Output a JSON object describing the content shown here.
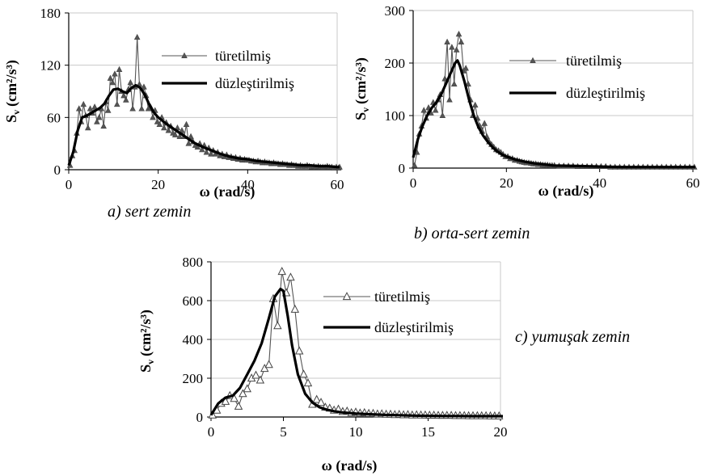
{
  "chart_data": [
    {
      "type": "line",
      "caption": "a) sert zemin",
      "xlabel": "ω (rad/s)",
      "ylabel_main": "S",
      "ylabel_sub": "v",
      "ylabel_unit": "(cm²/s³)",
      "xlim": [
        0,
        60
      ],
      "ylim": [
        0,
        180
      ],
      "xticks": [
        "0",
        "20",
        "40",
        "60"
      ],
      "xtick_values": [
        0,
        20,
        40,
        60
      ],
      "yticks": [
        "0",
        "60",
        "120",
        "180"
      ],
      "ytick_values": [
        0,
        60,
        120,
        180
      ],
      "legend_position": "top-right",
      "series": [
        {
          "name": "türetilmiş",
          "marker": "filled-triangle",
          "x": [
            0.3,
            0.8,
            1.3,
            1.8,
            2.3,
            2.8,
            3.3,
            3.8,
            4.3,
            4.8,
            5.3,
            5.8,
            6.3,
            6.8,
            7.3,
            7.8,
            8.3,
            8.8,
            9.3,
            9.8,
            10.3,
            10.8,
            11.3,
            11.8,
            12.3,
            12.8,
            13.3,
            13.8,
            14.3,
            14.8,
            15.3,
            15.8,
            16.3,
            16.8,
            17.3,
            17.8,
            18.3,
            18.8,
            19.3,
            19.8,
            20.3,
            20.8,
            21.3,
            21.8,
            22.3,
            22.8,
            23.3,
            23.8,
            24.3,
            24.8,
            25.3,
            25.8,
            26.3,
            26.8,
            27.3,
            27.8,
            28.3,
            28.8,
            29.3,
            29.8,
            30.3,
            30.8,
            31.3,
            31.8,
            32.3,
            32.8,
            33.3,
            33.8,
            34.3,
            34.8,
            35.3,
            35.8,
            36.3,
            36.8,
            37.3,
            37.8,
            38.3,
            38.8,
            39.3,
            39.8,
            40.3,
            40.8,
            41.3,
            41.8,
            42.3,
            42.8,
            43.3,
            43.8,
            44.3,
            44.8,
            45.3,
            45.8,
            46.3,
            46.8,
            47.3,
            47.8,
            48.3,
            48.8,
            49.3,
            49.8,
            50.3,
            50.8,
            51.3,
            51.8,
            52.3,
            52.8,
            53.3,
            53.8,
            54.3,
            54.8,
            55.3,
            55.8,
            56.3,
            56.8,
            57.3,
            57.8,
            58.3,
            58.8,
            59.3,
            59.8,
            60.3,
            60.8
          ],
          "y": [
            5,
            16,
            22,
            42,
            70,
            55,
            75,
            62,
            48,
            70,
            65,
            72,
            55,
            60,
            70,
            50,
            78,
            68,
            105,
            100,
            110,
            75,
            115,
            90,
            85,
            80,
            92,
            100,
            70,
            95,
            152,
            98,
            70,
            95,
            85,
            70,
            72,
            60,
            68,
            55,
            52,
            60,
            48,
            54,
            45,
            50,
            42,
            40,
            48,
            38,
            45,
            38,
            52,
            30,
            38,
            32,
            28,
            26,
            30,
            23,
            28,
            20,
            25,
            18,
            22,
            18,
            20,
            16,
            18,
            15,
            17,
            14,
            15,
            13,
            14,
            12,
            13,
            11,
            12,
            11,
            11,
            10,
            10,
            9,
            10,
            9,
            8,
            9,
            8,
            8,
            7,
            8,
            7,
            7,
            6,
            7,
            6,
            6,
            5,
            6,
            5,
            5,
            4,
            5,
            4,
            4,
            5,
            4,
            3,
            4,
            3,
            4,
            3,
            3,
            3,
            4,
            3,
            3,
            2,
            3,
            2,
            3
          ]
        },
        {
          "name": "düzleştirilmiş",
          "marker": "none",
          "x": [
            0,
            1,
            2,
            3,
            4,
            5,
            6,
            7,
            8,
            9,
            10,
            11,
            12,
            13,
            14,
            15,
            16,
            17,
            18,
            19,
            20,
            22,
            24,
            26,
            28,
            30,
            32,
            34,
            36,
            38,
            40,
            42,
            44,
            46,
            48,
            50,
            52,
            54,
            56,
            58,
            60,
            61
          ],
          "y": [
            5,
            20,
            45,
            60,
            62,
            65,
            68,
            71,
            76,
            85,
            92,
            93,
            90,
            88,
            94,
            97,
            94,
            86,
            75,
            66,
            60,
            52,
            45,
            38,
            31,
            26,
            22,
            18,
            15,
            13,
            12,
            10,
            9,
            8,
            7,
            6,
            5,
            5,
            4,
            4,
            3,
            3
          ]
        }
      ]
    },
    {
      "type": "line",
      "caption": "b) orta-sert zemin",
      "xlabel": "ω (rad/s)",
      "ylabel_main": "S",
      "ylabel_sub": "v",
      "ylabel_unit": "(cm²/s³)",
      "xlim": [
        0,
        60
      ],
      "ylim": [
        0,
        300
      ],
      "xticks": [
        "0",
        "20",
        "40",
        "60"
      ],
      "xtick_values": [
        0,
        20,
        40,
        60
      ],
      "yticks": [
        "0",
        "100",
        "200",
        "300"
      ],
      "ytick_values": [
        0,
        100,
        200,
        300
      ],
      "legend_position": "top-right",
      "series": [
        {
          "name": "türetilmiş",
          "marker": "filled-triangle",
          "x": [
            0.3,
            0.8,
            1.3,
            1.8,
            2.3,
            2.8,
            3.3,
            3.8,
            4.3,
            4.8,
            5.3,
            5.8,
            6.3,
            6.8,
            7.3,
            7.8,
            8.3,
            8.8,
            9.3,
            9.8,
            10.3,
            10.8,
            11.3,
            11.8,
            12.3,
            12.8,
            13.3,
            13.8,
            14.3,
            14.8,
            15.3,
            15.8,
            16.3,
            16.8,
            17.3,
            17.8,
            18.3,
            18.8,
            19.3,
            19.8,
            20.3,
            20.8,
            21.3,
            21.8,
            22.3,
            22.8,
            23.3,
            23.8,
            24.3,
            24.8,
            25.3,
            25.8,
            26.3,
            26.8,
            27.3,
            27.8,
            28.3,
            28.8,
            29.3,
            29.8,
            30.3,
            31.3,
            32.3,
            33.3,
            34.3,
            35.3,
            36.3,
            37.3,
            38.3,
            39.3,
            40.3,
            41.3,
            42.3,
            43.3,
            44.3,
            45.3,
            46.3,
            47.3,
            48.3,
            49.3,
            50.3,
            51.3,
            52.3,
            53.3,
            54.3,
            55.3,
            56.3,
            57.3,
            58.3,
            59.3,
            60.3
          ],
          "y": [
            5,
            30,
            65,
            80,
            110,
            95,
            115,
            105,
            125,
            110,
            130,
            140,
            100,
            170,
            240,
            130,
            230,
            160,
            225,
            255,
            240,
            185,
            190,
            160,
            130,
            100,
            120,
            95,
            80,
            70,
            85,
            60,
            50,
            45,
            40,
            35,
            33,
            30,
            26,
            22,
            22,
            18,
            18,
            15,
            15,
            13,
            12,
            11,
            10,
            10,
            9,
            8,
            8,
            7,
            7,
            6,
            6,
            6,
            5,
            5,
            5,
            4,
            4,
            4,
            4,
            3,
            3,
            3,
            3,
            3,
            3,
            3,
            2,
            2,
            2,
            2,
            2,
            2,
            2,
            2,
            2,
            2,
            2,
            2,
            2,
            2,
            2,
            2,
            2,
            2,
            2
          ]
        },
        {
          "name": "düzleştirilmiş",
          "marker": "none",
          "x": [
            0,
            1,
            2,
            3,
            4,
            5,
            6,
            7,
            8,
            9,
            9.5,
            10,
            11,
            12,
            13,
            14,
            15,
            16,
            17,
            18,
            19,
            20,
            22,
            24,
            26,
            28,
            30,
            35,
            40,
            45,
            50,
            55,
            60,
            61
          ],
          "y": [
            20,
            55,
            80,
            100,
            115,
            125,
            140,
            160,
            180,
            200,
            205,
            195,
            165,
            130,
            100,
            78,
            62,
            50,
            40,
            32,
            26,
            22,
            16,
            12,
            9,
            7,
            5,
            4,
            3,
            2,
            2,
            2,
            2,
            2
          ]
        }
      ]
    },
    {
      "type": "line",
      "caption": "c) yumuşak zemin",
      "xlabel": "ω (rad/s)",
      "ylabel_main": "S",
      "ylabel_sub": "v",
      "ylabel_unit": "(cm²/s³)",
      "xlim": [
        0,
        20
      ],
      "ylim": [
        0,
        800
      ],
      "xticks": [
        "0",
        "5",
        "10",
        "15",
        "20"
      ],
      "xtick_values": [
        0,
        5,
        10,
        15,
        20
      ],
      "yticks": [
        "0",
        "200",
        "400",
        "600",
        "800"
      ],
      "ytick_values": [
        0,
        200,
        400,
        600,
        800
      ],
      "legend_position": "top-right",
      "series": [
        {
          "name": "türetilmiş",
          "marker": "open-triangle",
          "x": [
            0.1,
            0.4,
            0.7,
            1.0,
            1.3,
            1.6,
            1.9,
            2.2,
            2.5,
            2.8,
            3.1,
            3.4,
            3.7,
            4.0,
            4.3,
            4.6,
            4.9,
            5.2,
            5.5,
            5.8,
            6.1,
            6.4,
            6.7,
            7.0,
            7.3,
            7.6,
            7.9,
            8.2,
            8.5,
            8.8,
            9.1,
            9.4,
            9.7,
            10.0,
            10.3,
            10.6,
            10.9,
            11.2,
            11.5,
            11.8,
            12.1,
            12.4,
            12.7,
            13.0,
            13.3,
            13.6,
            13.9,
            14.2,
            14.5,
            14.8,
            15.1,
            15.4,
            15.7,
            16.0,
            16.3,
            16.6,
            16.9,
            17.2,
            17.5,
            17.8,
            18.1,
            18.4,
            18.7,
            19.0,
            19.3,
            19.6,
            19.9
          ],
          "y": [
            10,
            35,
            70,
            80,
            110,
            95,
            55,
            120,
            145,
            200,
            215,
            190,
            250,
            270,
            610,
            470,
            750,
            640,
            720,
            555,
            340,
            220,
            175,
            65,
            90,
            75,
            50,
            45,
            35,
            40,
            28,
            30,
            22,
            25,
            20,
            22,
            18,
            18,
            15,
            16,
            14,
            14,
            12,
            13,
            11,
            12,
            10,
            11,
            10,
            10,
            9,
            9,
            8,
            8,
            8,
            8,
            7,
            7,
            7,
            6,
            6,
            6,
            6,
            6,
            5,
            5,
            5
          ]
        },
        {
          "name": "düzleştirilmiş",
          "marker": "none",
          "x": [
            0,
            0.5,
            1.0,
            1.5,
            2.0,
            2.5,
            3.0,
            3.5,
            4.0,
            4.4,
            4.8,
            5.0,
            5.3,
            5.6,
            6.0,
            6.5,
            7.0,
            7.5,
            8.0,
            8.5,
            9.0,
            10,
            11,
            12,
            13,
            14,
            15,
            16,
            17,
            18,
            19,
            20,
            20.3
          ],
          "y": [
            10,
            70,
            100,
            110,
            150,
            220,
            290,
            380,
            510,
            620,
            660,
            650,
            520,
            370,
            220,
            120,
            75,
            50,
            38,
            30,
            24,
            18,
            14,
            11,
            9,
            7,
            6,
            5,
            5,
            4,
            4,
            4,
            4
          ]
        }
      ]
    }
  ]
}
